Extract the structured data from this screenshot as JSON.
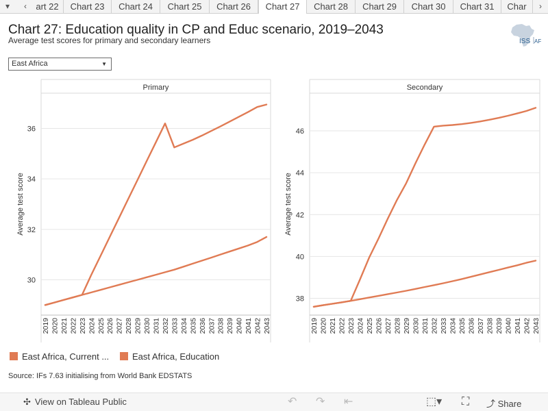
{
  "tabs": {
    "items": [
      "art 22",
      "Chart 23",
      "Chart 24",
      "Chart 25",
      "Chart 26",
      "Chart 27",
      "Chart 28",
      "Chart 29",
      "Chart 30",
      "Chart 31",
      "Char"
    ],
    "active_index": 5,
    "prev_icon": "chevron-left-icon",
    "next_icon": "chevron-right-icon",
    "menu_icon": "dropdown-triangle-icon"
  },
  "header": {
    "title": "Chart 27: Education quality in CP and Educ scenario, 2019–2043",
    "subtitle": "Average test scores for primary and secondary learners",
    "logo_text": "ISS",
    "logo_suffix": "AF"
  },
  "filter": {
    "selected": "East Africa",
    "caret": "▼"
  },
  "legend": {
    "items": [
      {
        "label": "East Africa, Current ...",
        "color": "#e07b54"
      },
      {
        "label": "East Africa, Education",
        "color": "#e07b54"
      }
    ]
  },
  "source": "Source: IFs 7.63 initialising from World Bank EDSTATS",
  "footer": {
    "view_label": "View on Tableau Public",
    "share_label": "Share",
    "icons": [
      "undo-icon",
      "redo-icon",
      "revert-icon",
      "download-icon",
      "fullscreen-icon",
      "share-icon"
    ]
  },
  "chart_data": [
    {
      "type": "line",
      "title": "Primary",
      "ylabel": "Average test score",
      "xlabel": "",
      "ylim": [
        28.6,
        37.4
      ],
      "yticks": [
        30,
        32,
        34,
        36
      ],
      "x": [
        2019,
        2020,
        2021,
        2022,
        2023,
        2024,
        2025,
        2026,
        2027,
        2028,
        2029,
        2030,
        2031,
        2032,
        2033,
        2034,
        2035,
        2036,
        2037,
        2038,
        2039,
        2040,
        2041,
        2042,
        2043
      ],
      "series": [
        {
          "name": "East Africa, Current ...",
          "color": "#e07b54",
          "values": [
            29.0,
            29.1,
            29.2,
            29.3,
            29.4,
            29.5,
            29.6,
            29.7,
            29.8,
            29.9,
            30.0,
            30.1,
            30.2,
            30.3,
            30.4,
            30.52,
            30.64,
            30.76,
            30.88,
            31.0,
            31.12,
            31.24,
            31.36,
            31.5,
            31.7
          ]
        },
        {
          "name": "East Africa, Education",
          "color": "#e07b54",
          "values": [
            29.0,
            29.1,
            29.2,
            29.3,
            29.4,
            30.2,
            30.95,
            31.7,
            32.45,
            33.2,
            33.95,
            34.7,
            35.45,
            36.2,
            35.25,
            35.4,
            35.55,
            35.72,
            35.9,
            36.08,
            36.27,
            36.46,
            36.65,
            36.85,
            36.95
          ]
        }
      ]
    },
    {
      "type": "line",
      "title": "Secondary",
      "ylabel": "Average test score",
      "xlabel": "",
      "ylim": [
        37.2,
        47.8
      ],
      "yticks": [
        38,
        40,
        42,
        44,
        46
      ],
      "x": [
        2019,
        2020,
        2021,
        2022,
        2023,
        2024,
        2025,
        2026,
        2027,
        2028,
        2029,
        2030,
        2031,
        2032,
        2033,
        2034,
        2035,
        2036,
        2037,
        2038,
        2039,
        2040,
        2041,
        2042,
        2043
      ],
      "series": [
        {
          "name": "East Africa, Current ...",
          "color": "#e07b54",
          "values": [
            37.6,
            37.67,
            37.74,
            37.81,
            37.88,
            37.96,
            38.04,
            38.12,
            38.2,
            38.28,
            38.36,
            38.45,
            38.54,
            38.63,
            38.72,
            38.82,
            38.92,
            39.03,
            39.14,
            39.25,
            39.36,
            39.47,
            39.58,
            39.7,
            39.8
          ]
        },
        {
          "name": "East Africa, Education",
          "color": "#e07b54",
          "values": [
            37.6,
            37.67,
            37.74,
            37.81,
            37.88,
            38.9,
            39.95,
            40.85,
            41.8,
            42.7,
            43.5,
            44.45,
            45.35,
            46.2,
            46.25,
            46.28,
            46.32,
            46.38,
            46.45,
            46.53,
            46.62,
            46.72,
            46.83,
            46.95,
            47.1
          ]
        }
      ]
    }
  ]
}
